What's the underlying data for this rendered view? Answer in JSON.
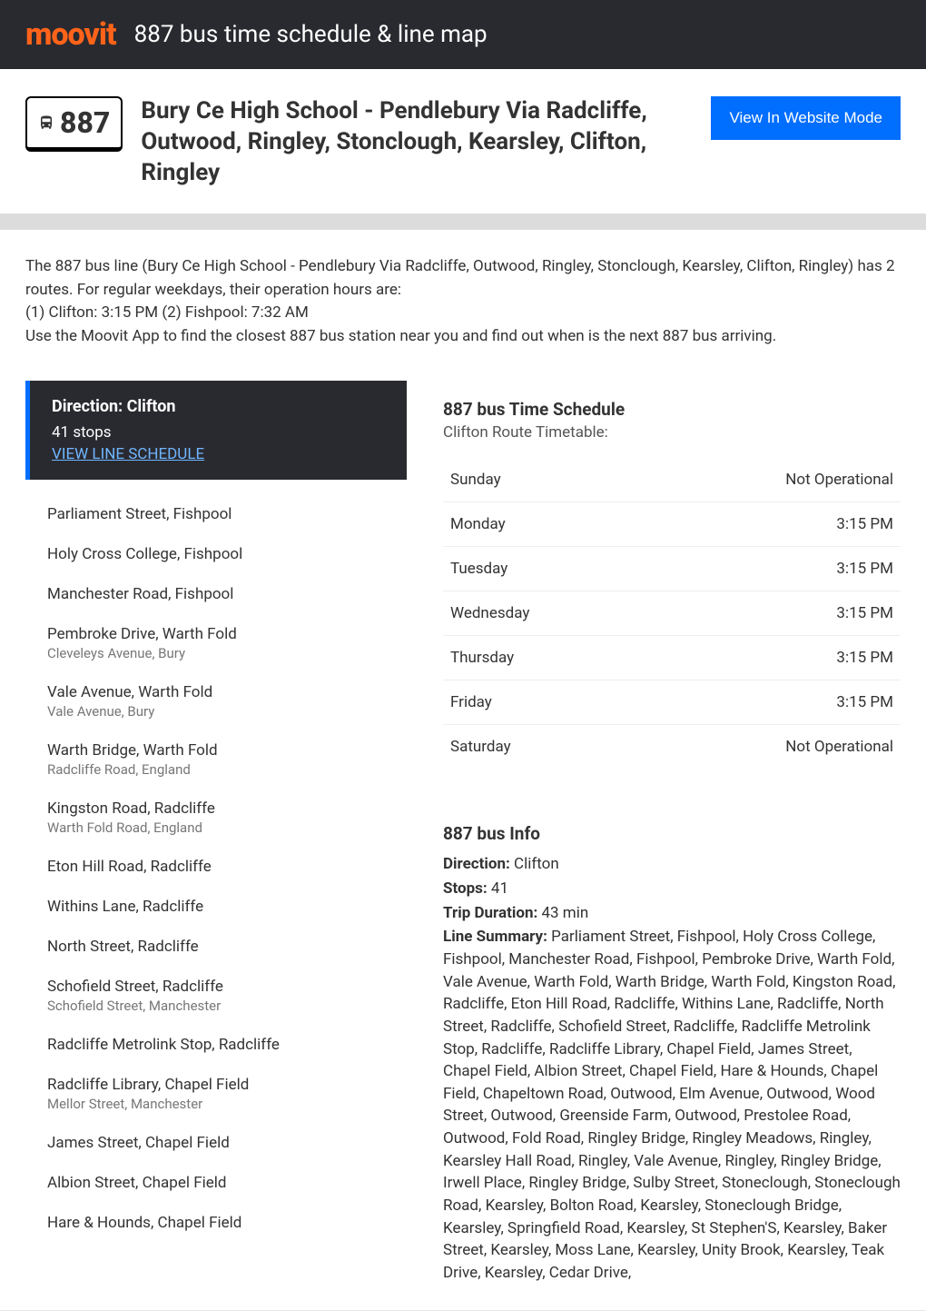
{
  "header": {
    "logo_text": "moovit",
    "title": "887 bus time schedule & line map"
  },
  "route": {
    "number": "887",
    "title": "Bury Ce High School - Pendlebury Via Radcliffe, Outwood, Ringley, Stonclough, Kearsley, Clifton, Ringley",
    "website_button": "View In Website Mode"
  },
  "intro": "The 887 bus line (Bury Ce High School - Pendlebury Via Radcliffe, Outwood, Ringley, Stonclough, Kearsley, Clifton, Ringley) has 2 routes. For regular weekdays, their operation hours are:\n(1) Clifton: 3:15 PM (2) Fishpool: 7:32 AM\nUse the Moovit App to find the closest 887 bus station near you and find out when is the next 887 bus arriving.",
  "direction": {
    "label": "Direction: Clifton",
    "stops_count": "41 stops",
    "view_schedule": "VIEW LINE SCHEDULE"
  },
  "stops": [
    {
      "name": "Parliament Street, Fishpool",
      "sub": ""
    },
    {
      "name": "Holy Cross College, Fishpool",
      "sub": ""
    },
    {
      "name": "Manchester Road, Fishpool",
      "sub": ""
    },
    {
      "name": "Pembroke Drive, Warth Fold",
      "sub": "Cleveleys Avenue, Bury"
    },
    {
      "name": "Vale Avenue, Warth Fold",
      "sub": "Vale Avenue, Bury"
    },
    {
      "name": "Warth Bridge, Warth Fold",
      "sub": "Radcliffe Road, England"
    },
    {
      "name": "Kingston Road, Radcliffe",
      "sub": "Warth Fold Road, England"
    },
    {
      "name": "Eton Hill Road, Radcliffe",
      "sub": ""
    },
    {
      "name": "Withins Lane, Radcliffe",
      "sub": ""
    },
    {
      "name": "North Street, Radcliffe",
      "sub": ""
    },
    {
      "name": "Schofield Street, Radcliffe",
      "sub": "Schofield Street, Manchester"
    },
    {
      "name": "Radcliffe Metrolink Stop, Radcliffe",
      "sub": ""
    },
    {
      "name": "Radcliffe Library, Chapel Field",
      "sub": "Mellor Street, Manchester"
    },
    {
      "name": "James Street, Chapel Field",
      "sub": ""
    },
    {
      "name": "Albion Street, Chapel Field",
      "sub": ""
    },
    {
      "name": "Hare & Hounds, Chapel Field",
      "sub": ""
    }
  ],
  "schedule": {
    "title": "887 bus Time Schedule",
    "subtitle": "Clifton Route Timetable:",
    "rows": [
      {
        "day": "Sunday",
        "time": "Not Operational"
      },
      {
        "day": "Monday",
        "time": "3:15 PM"
      },
      {
        "day": "Tuesday",
        "time": "3:15 PM"
      },
      {
        "day": "Wednesday",
        "time": "3:15 PM"
      },
      {
        "day": "Thursday",
        "time": "3:15 PM"
      },
      {
        "day": "Friday",
        "time": "3:15 PM"
      },
      {
        "day": "Saturday",
        "time": "Not Operational"
      }
    ]
  },
  "info": {
    "title": "887 bus Info",
    "direction_label": "Direction:",
    "direction_value": "Clifton",
    "stops_label": "Stops:",
    "stops_value": "41",
    "duration_label": "Trip Duration:",
    "duration_value": "43 min",
    "summary_label": "Line Summary:",
    "summary_value": "Parliament Street, Fishpool, Holy Cross College, Fishpool, Manchester Road, Fishpool, Pembroke Drive, Warth Fold, Vale Avenue, Warth Fold, Warth Bridge, Warth Fold, Kingston Road, Radcliffe, Eton Hill Road, Radcliffe, Withins Lane, Radcliffe, North Street, Radcliffe, Schofield Street, Radcliffe, Radcliffe Metrolink Stop, Radcliffe, Radcliffe Library, Chapel Field, James Street, Chapel Field, Albion Street, Chapel Field, Hare & Hounds, Chapel Field, Chapeltown Road, Outwood, Elm Avenue, Outwood, Wood Street, Outwood, Greenside Farm, Outwood, Prestolee Road, Outwood, Fold Road, Ringley Bridge, Ringley Meadows, Ringley, Kearsley Hall Road, Ringley, Vale Avenue, Ringley, Ringley Bridge, Irwell Place, Ringley Bridge, Sulby Street, Stoneclough, Stoneclough Road, Kearsley, Bolton Road, Kearsley, Stoneclough Bridge, Kearsley, Springfield Road, Kearsley, St Stephen'S, Kearsley, Baker Street, Kearsley, Moss Lane, Kearsley, Unity Brook, Kearsley, Teak Drive, Kearsley, Cedar Drive,"
  },
  "colors": {
    "header_bg": "#292a30",
    "logo_orange": "#ff6319",
    "button_blue": "#006eff",
    "link_blue": "#70b5ff",
    "body_bg": "#e8e8e8",
    "divider": "#dcdcdc"
  }
}
